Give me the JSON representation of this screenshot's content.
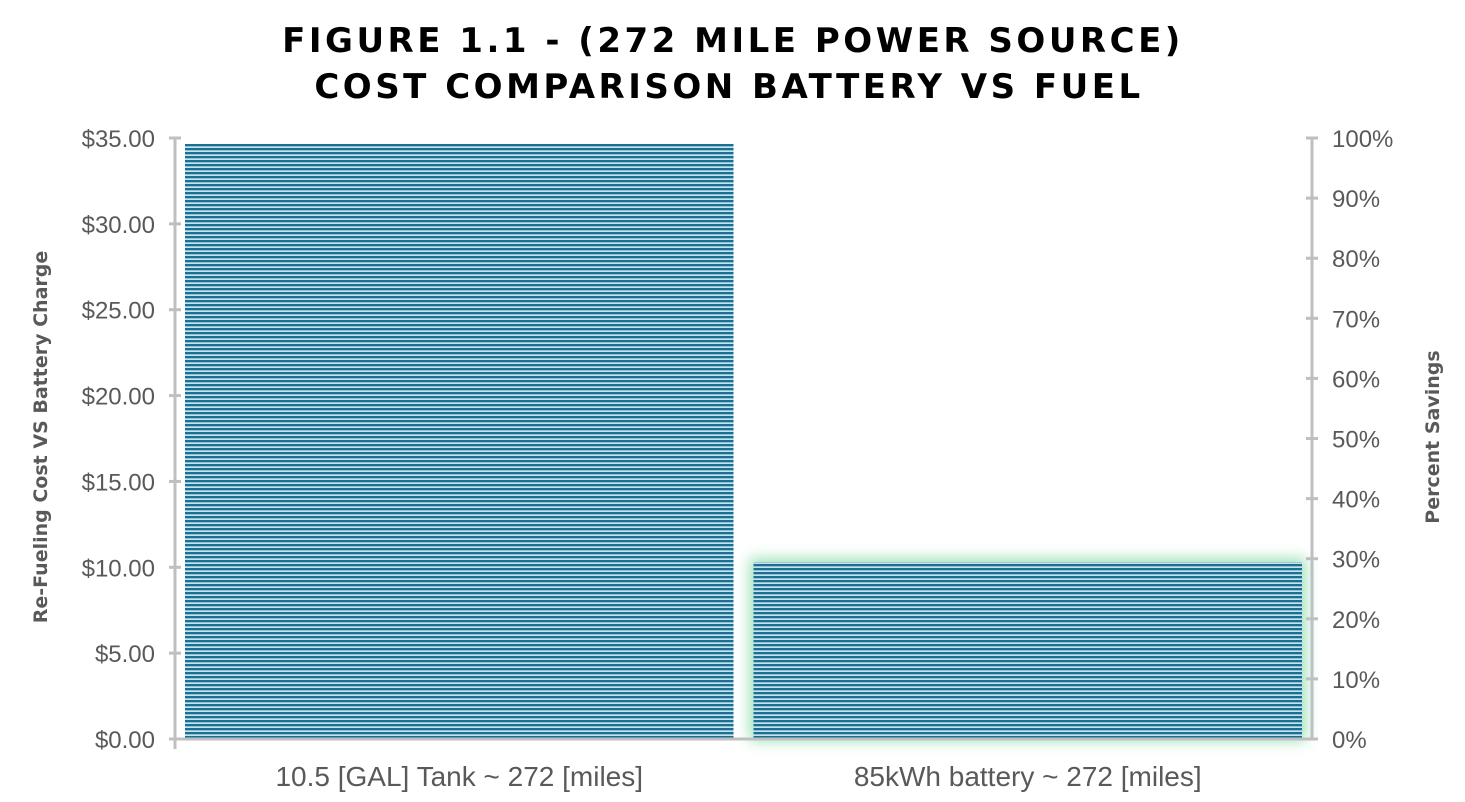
{
  "chart_data": {
    "type": "bar",
    "title": [
      "FIGURE 1.1 - (272 MILE POWER SOURCE)",
      "COST COMPARISON BATTERY VS FUEL"
    ],
    "categories": [
      "10.5 [GAL] Tank ~ 272 [miles]",
      "85kWh battery ~ 272 [miles]"
    ],
    "series": [
      {
        "values": [
          34.65,
          10.3
        ]
      }
    ],
    "ylabel": "Re-Fueling Cost VS Battery Charge",
    "ylim": [
      0,
      35
    ],
    "yticks": [
      "$0.00",
      "$5.00",
      "$10.00",
      "$15.00",
      "$20.00",
      "$25.00",
      "$30.00",
      "$35.00"
    ],
    "y2label": "Percent Savings",
    "y2lim": [
      0,
      100
    ],
    "y2ticks": [
      "0%",
      "10%",
      "20%",
      "30%",
      "40%",
      "50%",
      "60%",
      "70%",
      "80%",
      "90%",
      "100%"
    ],
    "grid": false,
    "legend": "none",
    "colors": {
      "bar_main": "#1b6f93",
      "bar_stripe": "#c5e3ef",
      "bar_glow": "#7fd8a0",
      "axis": "#bfbfbf",
      "text": "#595959"
    }
  }
}
